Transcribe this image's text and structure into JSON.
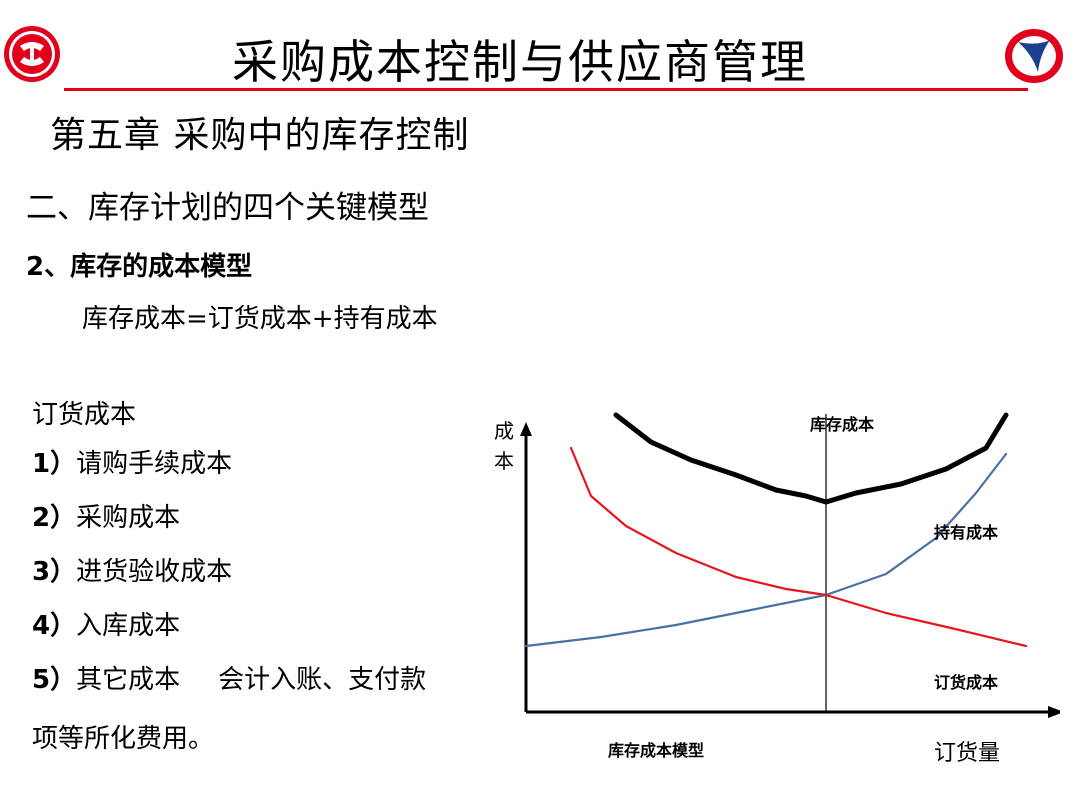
{
  "header": {
    "title": "采购成本控制与供应商管理",
    "left_logo_icon": "company-emblem-icon",
    "right_logo_icon": "swoosh-logo-icon",
    "accent_color": "#e1001b"
  },
  "slide": {
    "chapter": "第五章 采购中的库存控制",
    "section": "二、库存计划的四个关键模型",
    "subsection": "2、库存的成本模型",
    "formula": "库存成本=订货成本+持有成本"
  },
  "ordering_cost": {
    "heading": "订货成本",
    "items": [
      {
        "num": "1）",
        "text": "请购手续成本",
        "note": ""
      },
      {
        "num": "2）",
        "text": "采购成本",
        "note": ""
      },
      {
        "num": "3）",
        "text": "进货验收成本",
        "note": ""
      },
      {
        "num": "4）",
        "text": "入库成本",
        "note": ""
      },
      {
        "num": "5）",
        "text": "其它成本",
        "note": "会计入账、支付款"
      }
    ],
    "continuation": "项等所化费用。"
  },
  "chart_data": {
    "type": "line",
    "title": "库存成本模型",
    "ylabel": "成本",
    "xlabel": "订货量",
    "grid": false,
    "series": [
      {
        "name": "库存成本",
        "color": "#000000",
        "x": [
          0.18,
          0.25,
          0.33,
          0.42,
          0.5,
          0.56,
          0.6,
          0.66,
          0.75,
          0.84,
          0.92,
          0.96
        ],
        "y": [
          0.99,
          0.9,
          0.84,
          0.79,
          0.74,
          0.72,
          0.7,
          0.73,
          0.76,
          0.81,
          0.88,
          0.99
        ]
      },
      {
        "name": "持有成本",
        "color": "#4a6fa5",
        "x": [
          0.0,
          0.15,
          0.3,
          0.45,
          0.6,
          0.72,
          0.82,
          0.9,
          0.96
        ],
        "y": [
          0.22,
          0.25,
          0.29,
          0.34,
          0.39,
          0.46,
          0.58,
          0.73,
          0.86
        ]
      },
      {
        "name": "订货成本",
        "color": "#e8141e",
        "x": [
          0.09,
          0.13,
          0.2,
          0.3,
          0.42,
          0.52,
          0.6,
          0.72,
          0.85,
          1.0
        ],
        "y": [
          0.88,
          0.72,
          0.62,
          0.53,
          0.45,
          0.41,
          0.39,
          0.33,
          0.28,
          0.22
        ]
      }
    ],
    "optimal_x": 0.6
  }
}
